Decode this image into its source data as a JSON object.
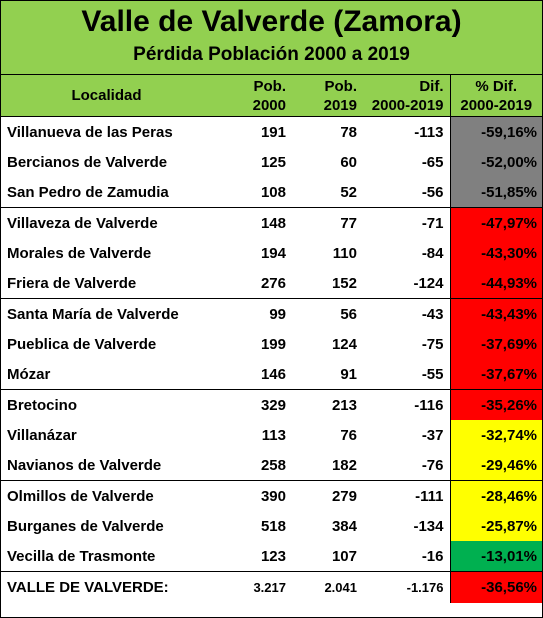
{
  "title": "Valle de Valverde (Zamora)",
  "subtitle": "Pérdida Población 2000 a 2019",
  "headers": {
    "localidad": "Localidad",
    "pob2000_a": "Pob.",
    "pob2000_b": "2000",
    "pob2019_a": "Pob.",
    "pob2019_b": "2019",
    "dif_a": "Dif.",
    "dif_b": "2000-2019",
    "pct_a": "% Dif.",
    "pct_b": "2000-2019"
  },
  "colors": {
    "gray": "#808080",
    "red": "#ff0000",
    "yellow": "#ffff00",
    "green": "#00b050",
    "header": "#92d050"
  },
  "rows": [
    {
      "name": "Villanueva de las Peras",
      "p2000": "191",
      "p2019": "78",
      "dif": "-113",
      "pct": "-59,16%",
      "color": "gray"
    },
    {
      "name": "Bercianos de Valverde",
      "p2000": "125",
      "p2019": "60",
      "dif": "-65",
      "pct": "-52,00%",
      "color": "gray"
    },
    {
      "name": "San Pedro de Zamudia",
      "p2000": "108",
      "p2019": "52",
      "dif": "-56",
      "pct": "-51,85%",
      "color": "gray"
    },
    {
      "name": "Villaveza de Valverde",
      "p2000": "148",
      "p2019": "77",
      "dif": "-71",
      "pct": "-47,97%",
      "color": "red"
    },
    {
      "name": "Morales de Valverde",
      "p2000": "194",
      "p2019": "110",
      "dif": "-84",
      "pct": "-43,30%",
      "color": "red"
    },
    {
      "name": "Friera de Valverde",
      "p2000": "276",
      "p2019": "152",
      "dif": "-124",
      "pct": "-44,93%",
      "color": "red"
    },
    {
      "name": "Santa María de Valverde",
      "p2000": "99",
      "p2019": "56",
      "dif": "-43",
      "pct": "-43,43%",
      "color": "red"
    },
    {
      "name": "Pueblica de Valverde",
      "p2000": "199",
      "p2019": "124",
      "dif": "-75",
      "pct": "-37,69%",
      "color": "red"
    },
    {
      "name": "Mózar",
      "p2000": "146",
      "p2019": "91",
      "dif": "-55",
      "pct": "-37,67%",
      "color": "red"
    },
    {
      "name": "Bretocino",
      "p2000": "329",
      "p2019": "213",
      "dif": "-116",
      "pct": "-35,26%",
      "color": "red"
    },
    {
      "name": "Villanázar",
      "p2000": "113",
      "p2019": "76",
      "dif": "-37",
      "pct": "-32,74%",
      "color": "yellow"
    },
    {
      "name": "Navianos de Valverde",
      "p2000": "258",
      "p2019": "182",
      "dif": "-76",
      "pct": "-29,46%",
      "color": "yellow"
    },
    {
      "name": "Olmillos de Valverde",
      "p2000": "390",
      "p2019": "279",
      "dif": "-111",
      "pct": "-28,46%",
      "color": "yellow"
    },
    {
      "name": "Burganes de Valverde",
      "p2000": "518",
      "p2019": "384",
      "dif": "-134",
      "pct": "-25,87%",
      "color": "yellow"
    },
    {
      "name": "Vecilla de Trasmonte",
      "p2000": "123",
      "p2019": "107",
      "dif": "-16",
      "pct": "-13,01%",
      "color": "green"
    }
  ],
  "total": {
    "name": "VALLE DE VALVERDE:",
    "p2000": "3.217",
    "p2019": "2.041",
    "dif": "-1.176",
    "pct": "-36,56%",
    "color": "red"
  }
}
